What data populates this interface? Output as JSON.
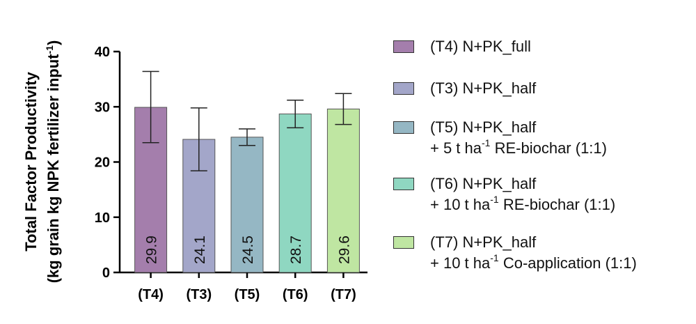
{
  "chart_data": {
    "type": "bar",
    "ylabel_line1": "Total Factor Productivity",
    "ylabel_line2_pre": "(kg grain kg NPK fertilizer input",
    "ylabel_line2_sup": "-1",
    "ylabel_line2_post": ")",
    "ylim": [
      0,
      40
    ],
    "yticks": [
      "0",
      "10",
      "20",
      "30",
      "40"
    ],
    "categories": [
      "(T4)",
      "(T3)",
      "(T5)",
      "(T6)",
      "(T7)"
    ],
    "values": [
      29.9,
      24.1,
      24.5,
      28.7,
      29.6
    ],
    "value_labels": [
      "29.9",
      "24.1",
      "24.5",
      "28.7",
      "29.6"
    ],
    "error_low": [
      23.5,
      18.4,
      23.0,
      26.2,
      26.8
    ],
    "error_high": [
      36.4,
      29.8,
      26.0,
      31.2,
      32.4
    ],
    "colors": [
      "#a47eac",
      "#a3a6c9",
      "#95b7c4",
      "#8fd7c1",
      "#bfe6a2"
    ],
    "legend": [
      {
        "line1": "(T4) N+PK_full",
        "line2_pre": "",
        "line2_sup": "",
        "line2_post": ""
      },
      {
        "line1": "(T3) N+PK_half",
        "line2_pre": "",
        "line2_sup": "",
        "line2_post": ""
      },
      {
        "line1": "(T5) N+PK_half",
        "line2_pre": "+ 5 t ha",
        "line2_sup": "-1",
        "line2_post": " RE-biochar (1:1)"
      },
      {
        "line1": "(T6) N+PK_half",
        "line2_pre": "+ 10 t ha",
        "line2_sup": "-1",
        "line2_post": " RE-biochar (1:1)"
      },
      {
        "line1": "(T7) N+PK_half",
        "line2_pre": "+ 10 t ha",
        "line2_sup": "-1",
        "line2_post": " Co-application (1:1)"
      }
    ]
  }
}
